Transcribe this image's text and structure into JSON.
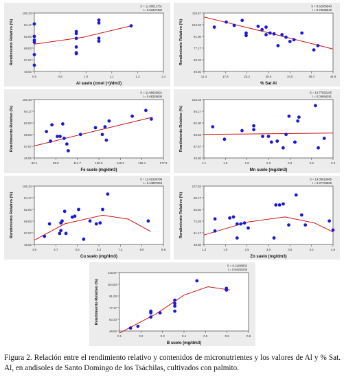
{
  "caption": "Figura 2. Relación entre el rendimiento relativo y contenidos de micronutrientes y los valores de Al y % Sat. Al, en andisoles de Santo Domingo de los Tsáchilas, cultivados con palmito.",
  "chart_data": [
    {
      "type": "scatter",
      "xlabel": "Al suelo (cmol (+)/dm3)",
      "ylabel": "Rendimiento Relativo (%)",
      "stat_s": "S = 11.08612751",
      "stat_r": "r = 0.53437482",
      "xticks": [
        "0.6",
        "0.8",
        "1.0",
        "1.1",
        "1.3",
        "1.4"
      ],
      "yticks": [
        "45.50",
        "57.67",
        "69.83",
        "82.00",
        "94.17",
        "106.33"
      ],
      "xlim": [
        0.6,
        1.4
      ],
      "ylim": [
        45.5,
        106.33
      ],
      "points": [
        [
          0.6,
          95
        ],
        [
          0.6,
          78
        ],
        [
          0.6,
          82
        ],
        [
          0.6,
          76
        ],
        [
          0.6,
          63
        ],
        [
          0.6,
          52
        ],
        [
          0.86,
          87
        ],
        [
          0.86,
          85
        ],
        [
          0.86,
          80
        ],
        [
          0.86,
          71
        ],
        [
          0.86,
          65
        ],
        [
          0.86,
          64
        ],
        [
          1.0,
          99
        ],
        [
          1.0,
          96
        ],
        [
          1.0,
          80
        ],
        [
          1.0,
          77
        ],
        [
          1.2,
          93
        ]
      ],
      "curve": [
        [
          0.6,
          74
        ],
        [
          0.9,
          81
        ],
        [
          1.2,
          93
        ]
      ]
    },
    {
      "type": "scatter",
      "xlabel": "% Sat Al",
      "ylabel": "Rendimiento Relativo (%)",
      "stat_s": "S = 8.62985943",
      "stat_r": "r = 0.75536849",
      "xticks": [
        "12.4",
        "17.8",
        "23.2",
        "28.6",
        "34.0",
        "39.4",
        "44.8"
      ],
      "yticks": [
        "49.50",
        "63.33",
        "77.17",
        "91.00",
        "104.83",
        "118.67"
      ],
      "xlim": [
        12.4,
        44.8
      ],
      "ylim": [
        49.5,
        118.67
      ],
      "points": [
        [
          15,
          102
        ],
        [
          18,
          108
        ],
        [
          20,
          104
        ],
        [
          22,
          110
        ],
        [
          23,
          95
        ],
        [
          23,
          92
        ],
        [
          26,
          103
        ],
        [
          27,
          99
        ],
        [
          28,
          93
        ],
        [
          28,
          102
        ],
        [
          29,
          95
        ],
        [
          30,
          94
        ],
        [
          31,
          80
        ],
        [
          32,
          93
        ],
        [
          33,
          90
        ],
        [
          34,
          85
        ],
        [
          35,
          87
        ],
        [
          37,
          95
        ],
        [
          40,
          75
        ],
        [
          41,
          80
        ]
      ],
      "curve": [
        [
          12.4,
          114
        ],
        [
          28,
          96
        ],
        [
          44.8,
          76
        ]
      ]
    },
    {
      "type": "scatter",
      "xlabel": "Fe suelo (mg/dm3)",
      "ylabel": "Rendimiento Relativo (%)",
      "stat_s": "S = 11.98926821",
      "stat_r": "r = 0.68326636",
      "xticks": [
        "83.1",
        "98.9",
        "114.7",
        "130.5",
        "146.3",
        "162.1",
        "177.9"
      ],
      "yticks": [
        "45.50",
        "57.67",
        "69.83",
        "82.00",
        "94.17",
        "106.33"
      ],
      "xlim": [
        83.1,
        177.9
      ],
      "ylim": [
        45.5,
        106.33
      ],
      "points": [
        [
          92,
          73
        ],
        [
          95,
          63
        ],
        [
          96,
          80
        ],
        [
          100,
          68
        ],
        [
          102,
          68
        ],
        [
          104,
          81
        ],
        [
          105,
          66
        ],
        [
          107,
          60
        ],
        [
          108,
          53
        ],
        [
          117,
          70
        ],
        [
          128,
          77
        ],
        [
          133,
          70
        ],
        [
          135,
          78
        ],
        [
          136,
          64
        ],
        [
          138,
          84
        ],
        [
          155,
          89
        ],
        [
          165,
          95
        ],
        [
          169,
          86
        ]
      ],
      "curve": [
        [
          83.1,
          58
        ],
        [
          126,
          73
        ],
        [
          170,
          88
        ]
      ]
    },
    {
      "type": "scatter",
      "xlabel": "Mn suelo (mg/dm3)",
      "ylabel": "Rendimiento Relativo (%)",
      "stat_s": "S = 14.77932105",
      "stat_r": "r = 0.04694291",
      "xticks": [
        "1.1",
        "1.5",
        "1.8",
        "2.2",
        "2.6",
        "2.9",
        "3.3"
      ],
      "yticks": [
        "45.50",
        "57.67",
        "69.83",
        "82.00",
        "94.17",
        "106.33"
      ],
      "xlim": [
        1.1,
        3.3
      ],
      "ylim": [
        45.5,
        106.33
      ],
      "points": [
        [
          1.25,
          78
        ],
        [
          1.45,
          65
        ],
        [
          1.75,
          74
        ],
        [
          1.95,
          75
        ],
        [
          1.95,
          79
        ],
        [
          2.1,
          68
        ],
        [
          2.2,
          68
        ],
        [
          2.25,
          62
        ],
        [
          2.35,
          63
        ],
        [
          2.45,
          56
        ],
        [
          2.5,
          70
        ],
        [
          2.55,
          89
        ],
        [
          2.65,
          62
        ],
        [
          2.65,
          62
        ],
        [
          2.7,
          84
        ],
        [
          2.72,
          88
        ],
        [
          3.0,
          100
        ],
        [
          3.05,
          56
        ],
        [
          3.15,
          66
        ]
      ],
      "curve": [
        [
          1.1,
          70
        ],
        [
          3.3,
          71.5
        ]
      ]
    },
    {
      "type": "scatter",
      "xlabel": "Cu suelo (mg/dm3)",
      "ylabel": "Rendimiento Relativo (%)",
      "stat_s": "S = 13.61936798",
      "stat_r": "r = 0.44897643",
      "xticks": [
        "3.8",
        "4.7",
        "5.5",
        "6.3",
        "7.2",
        "8.0",
        "8.9"
      ],
      "yticks": [
        "45.50",
        "57.67",
        "69.83",
        "82.00",
        "94.17",
        "106.33"
      ],
      "xlim": [
        3.8,
        8.9
      ],
      "ylim": [
        45.5,
        106.33
      ],
      "points": [
        [
          4.2,
          54
        ],
        [
          4.4,
          67
        ],
        [
          4.8,
          57
        ],
        [
          4.85,
          60
        ],
        [
          4.85,
          68
        ],
        [
          4.9,
          70
        ],
        [
          5.0,
          80
        ],
        [
          5.05,
          57
        ],
        [
          5.3,
          74
        ],
        [
          5.4,
          75
        ],
        [
          5.55,
          82
        ],
        [
          5.75,
          51
        ],
        [
          6.0,
          70
        ],
        [
          6.25,
          67
        ],
        [
          6.4,
          68
        ],
        [
          6.5,
          82
        ],
        [
          6.7,
          98
        ],
        [
          8.3,
          70
        ]
      ],
      "curve": [
        [
          3.8,
          50
        ],
        [
          5.0,
          67
        ],
        [
          6.5,
          76
        ],
        [
          7.5,
          72
        ],
        [
          8.4,
          59
        ]
      ]
    },
    {
      "type": "scatter",
      "xlabel": "Zn suelo (mg/dm3)",
      "ylabel": "Rendimiento Relativo (%)",
      "stat_s": "S = 14.09619986",
      "stat_r": "r = 0.37734608",
      "xticks": [
        "1.3",
        "1.9",
        "2.5",
        "3.0",
        "3.6",
        "4.2",
        "4.8"
      ],
      "yticks": [
        "49.50",
        "61.17",
        "72.83",
        "84.50",
        "96.17",
        "107.83"
      ],
      "xlim": [
        1.3,
        4.8
      ],
      "ylim": [
        49.5,
        107.83
      ],
      "points": [
        [
          1.6,
          63
        ],
        [
          1.6,
          75
        ],
        [
          2.0,
          76
        ],
        [
          2.1,
          77
        ],
        [
          2.2,
          70
        ],
        [
          2.3,
          70
        ],
        [
          2.4,
          71
        ],
        [
          2.5,
          66
        ],
        [
          2.2,
          56
        ],
        [
          3.2,
          56
        ],
        [
          3.25,
          89
        ],
        [
          3.35,
          89
        ],
        [
          3.45,
          90
        ],
        [
          3.6,
          69
        ],
        [
          3.8,
          99
        ],
        [
          3.95,
          79
        ],
        [
          4.05,
          69
        ],
        [
          4.7,
          73
        ],
        [
          4.8,
          64
        ]
      ],
      "curve": [
        [
          1.3,
          59
        ],
        [
          2.5,
          72
        ],
        [
          3.5,
          77
        ],
        [
          4.3,
          71
        ],
        [
          4.8,
          62
        ]
      ]
    },
    {
      "type": "scatter",
      "xlabel": "B suelo (mg/dm3)",
      "ylabel": "Rendimiento Relativo (%)",
      "stat_s": "S = 6.11180832",
      "stat_r": "r = 0.94192235",
      "xticks": [
        "0.1",
        "0.2",
        "0.3",
        "0.4",
        "0.5",
        "0.6",
        "0.8"
      ],
      "yticks": [
        "49.50",
        "63.33",
        "77.17",
        "91.00",
        "104.83",
        "118.67"
      ],
      "xlim": [
        0.1,
        0.8
      ],
      "ylim": [
        49.5,
        118.67
      ],
      "points": [
        [
          0.16,
          53
        ],
        [
          0.2,
          55
        ],
        [
          0.27,
          71
        ],
        [
          0.27,
          72
        ],
        [
          0.27,
          73
        ],
        [
          0.27,
          66
        ],
        [
          0.32,
          71
        ],
        [
          0.4,
          82
        ],
        [
          0.4,
          86
        ],
        [
          0.4,
          79
        ],
        [
          0.4,
          73
        ],
        [
          0.52,
          109
        ],
        [
          0.68,
          100
        ],
        [
          0.68,
          98
        ]
      ],
      "curve": [
        [
          0.1,
          47
        ],
        [
          0.3,
          70
        ],
        [
          0.45,
          92
        ],
        [
          0.58,
          102
        ],
        [
          0.7,
          98
        ]
      ]
    }
  ]
}
